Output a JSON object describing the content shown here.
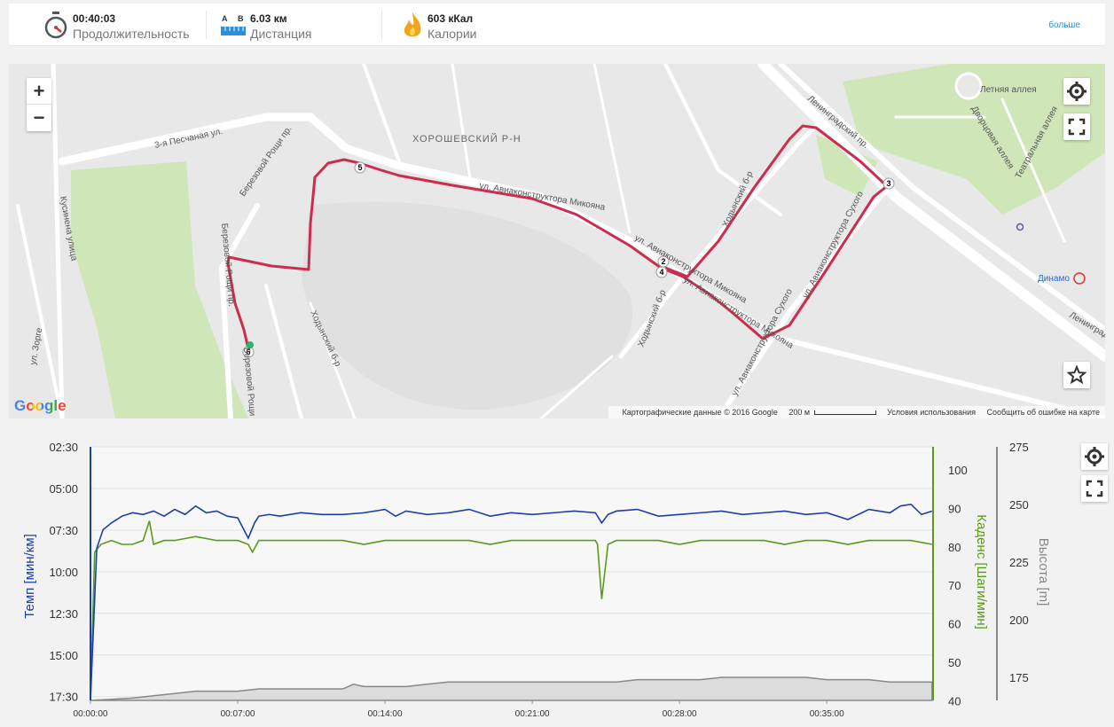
{
  "stats": {
    "duration": {
      "value": "00:40:03",
      "label": "Продолжительность",
      "icon": "stopwatch-icon"
    },
    "distance": {
      "value": "6.03 км",
      "label": "Дистанция",
      "icon": "ruler-icon",
      "from": "A",
      "to": "B"
    },
    "calories": {
      "value": "603 кКал",
      "label": "Калории",
      "icon": "flame-icon"
    },
    "more_label": "больше"
  },
  "map": {
    "streets": [
      "3-я Песчаная ул.",
      "ХОРОШЕВСКИЙ Р-Н",
      "ул. Авиаконструктора Микояна",
      "ул. Авиаконструктора Микояна",
      "ул. Авиаконструктора Микояна",
      "Березовой Рощи пр.",
      "Березовой Рощи пр.",
      "Ходынский б-р",
      "Ходынский б-р",
      "Ходынский б-р",
      "Ленинградский пр.",
      "Летняя аллея",
      "Дворцовая аллея",
      "Театральная аллея",
      "ул. Авиаконструктора Сухого",
      "ул. Авиаконструктора Сухого",
      "Кусинена улица",
      "ул. Зорге",
      "Динамо",
      "Березовой Рощи пр.",
      "Ленинградский пр."
    ],
    "markers": [
      "2",
      "3",
      "4",
      "5",
      "6"
    ],
    "attribution": "Картографические данные © 2016 Google",
    "scale": "200 м",
    "terms": "Условия использования",
    "report": "Сообщить об ошибке на карте",
    "logo": "Google",
    "zoom_in": "+",
    "zoom_out": "−",
    "route_color": "#cc2c4e"
  },
  "chart_data": {
    "type": "line",
    "x_ticks": [
      "00:00:00",
      "00:07:00",
      "00:14:00",
      "00:21:00",
      "00:28:00",
      "00:35:00"
    ],
    "pace_ticks": [
      "02:30",
      "05:00",
      "07:30",
      "10:00",
      "12:30",
      "15:00",
      "17:30"
    ],
    "cadence_ticks": [
      "100",
      "90",
      "80",
      "70",
      "60",
      "50",
      "40"
    ],
    "elevation_ticks": [
      "275",
      "250",
      "225",
      "200",
      "175"
    ],
    "pace_label": "Темп [мин/км]",
    "cadence_label": "Каденс [Шаги/мин]",
    "elevation_label": "Высота [m]",
    "pace_color": "#1a3fa8",
    "cadence_color": "#5a9a1a",
    "elevation_color": "#888888",
    "x_range_min": [
      0,
      40.05
    ],
    "pace_range": [
      2.5,
      17.5
    ],
    "cadence_range": [
      40,
      105
    ],
    "elevation_range": [
      165,
      275
    ],
    "series": [
      {
        "name": "Темп [мин/км]",
        "x": [
          0,
          0.3,
          0.6,
          1,
          1.5,
          2,
          2.5,
          3,
          3.5,
          4,
          4.5,
          5,
          5.5,
          6,
          6.5,
          7,
          7.5,
          7.8,
          8,
          8.5,
          9,
          10,
          11,
          12,
          13,
          14,
          14.5,
          15,
          16,
          17,
          18,
          19,
          20,
          21,
          22,
          23,
          24,
          24.3,
          24.6,
          25,
          26,
          27,
          28,
          29,
          30,
          31,
          32,
          33,
          34,
          35,
          36,
          37,
          38,
          38.5,
          39,
          39.5,
          40
        ],
        "values": [
          17.5,
          8.5,
          7.4,
          7.0,
          6.6,
          6.4,
          6.5,
          6.3,
          6.6,
          6.2,
          6.5,
          6.0,
          6.4,
          6.3,
          6.6,
          6.7,
          7.9,
          7.0,
          6.6,
          6.5,
          6.6,
          6.4,
          6.5,
          6.5,
          6.4,
          6.2,
          6.6,
          6.3,
          6.5,
          6.4,
          6.2,
          6.6,
          6.4,
          6.5,
          6.4,
          6.3,
          6.4,
          7.0,
          6.5,
          6.3,
          6.2,
          6.6,
          6.5,
          6.4,
          6.3,
          6.5,
          6.4,
          6.3,
          6.5,
          6.4,
          6.8,
          6.2,
          6.4,
          6.0,
          5.9,
          6.5,
          6.3
        ]
      },
      {
        "name": "Каденс [Шаги/мин]",
        "x": [
          0,
          0.2,
          0.5,
          1,
          1.5,
          2,
          2.5,
          2.8,
          3,
          3.5,
          4,
          5,
          6,
          7,
          7.5,
          7.7,
          8,
          9,
          10,
          11,
          12,
          13,
          14,
          15,
          16,
          17,
          18,
          19,
          20,
          21,
          22,
          23,
          24,
          24.1,
          24.3,
          24.6,
          25,
          26,
          27,
          28,
          29,
          30,
          31,
          32,
          33,
          34,
          35,
          36,
          37,
          38,
          39,
          40
        ],
        "values": [
          40,
          78,
          80,
          81,
          80,
          80,
          81,
          86,
          80,
          81,
          81,
          82,
          81,
          81,
          80,
          78,
          81,
          81,
          81,
          81,
          81,
          80,
          81,
          81,
          81,
          81,
          81,
          80,
          81,
          81,
          81,
          81,
          81,
          80,
          66,
          80,
          81,
          81,
          81,
          80,
          81,
          81,
          81,
          81,
          80,
          81,
          81,
          80,
          81,
          81,
          81,
          80
        ]
      },
      {
        "name": "Высота [m]",
        "x": [
          0,
          2,
          3,
          4,
          5,
          7,
          8,
          10,
          12,
          12.5,
          13,
          14,
          15,
          16,
          17,
          18,
          20,
          22,
          24,
          25,
          26,
          28,
          29,
          30,
          32,
          33,
          34,
          35,
          36,
          37,
          38,
          39,
          40
        ],
        "values": [
          165,
          166,
          167,
          168,
          169,
          169,
          170,
          170,
          170,
          172,
          171,
          171,
          171,
          172,
          173,
          173,
          173,
          173,
          173,
          173,
          174,
          174,
          174,
          175,
          175,
          175,
          175,
          174,
          174,
          174,
          173,
          173,
          173
        ]
      }
    ]
  }
}
